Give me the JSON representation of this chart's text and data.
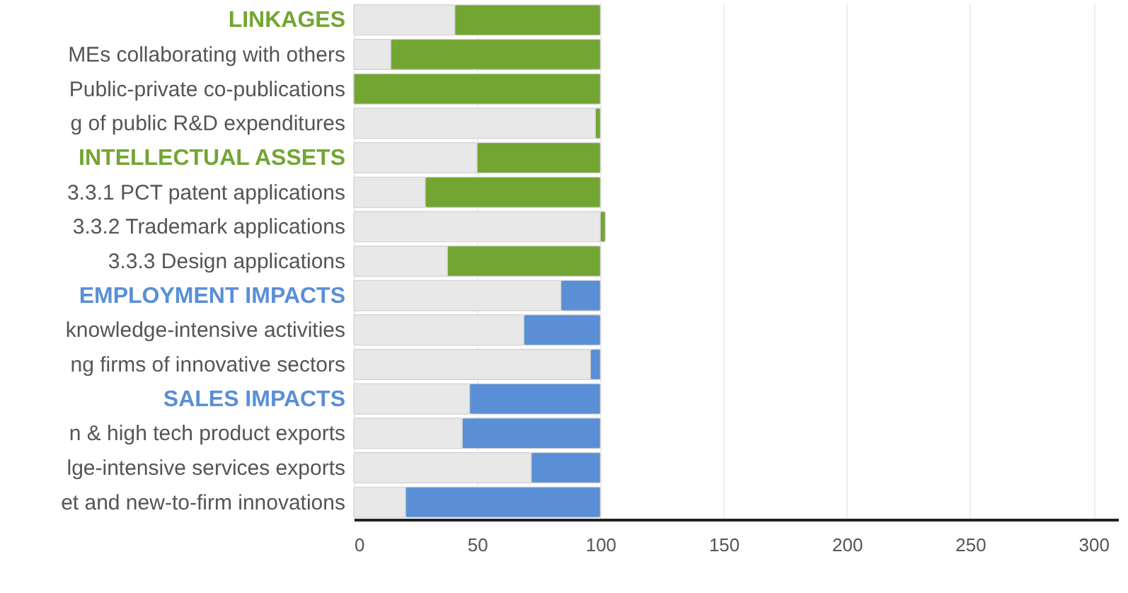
{
  "chart_data": {
    "type": "bar",
    "orientation": "horizontal",
    "stacked": true,
    "categories": [
      "LINKAGES",
      "MEs collaborating with others",
      "Public-private co-publications",
      "g of public R&D expenditures",
      "INTELLECTUAL ASSETS",
      "3.3.1 PCT patent applications",
      "3.3.2 Trademark applications",
      "3.3.3 Design applications",
      "EMPLOYMENT IMPACTS",
      "knowledge-intensive activities",
      "ng firms of innovative sectors",
      "SALES IMPACTS",
      "n & high tech product exports",
      "lge-intensive services exports",
      "et and new-to-firm innovations"
    ],
    "series": [
      {
        "color": "#e8e8e8",
        "values": [
          41,
          15,
          0,
          98,
          50,
          29,
          100,
          38,
          84,
          69,
          96,
          47,
          44,
          72,
          21
        ]
      },
      {
        "colors": [
          "#73a533",
          "#73a533",
          "#73a533",
          "#73a533",
          "#73a533",
          "#73a533",
          "#73a533",
          "#73a533",
          "#5a8fd6",
          "#5a8fd6",
          "#5a8fd6",
          "#5a8fd6",
          "#5a8fd6",
          "#5a8fd6",
          "#5a8fd6"
        ],
        "values": [
          59,
          85,
          100,
          2,
          50,
          71,
          2,
          62,
          16,
          31,
          4,
          53,
          56,
          28,
          79
        ]
      }
    ],
    "xlim": [
      0,
      310
    ],
    "xticks": [
      0,
      50,
      100,
      150,
      200,
      250,
      300
    ],
    "grid": "x"
  }
}
